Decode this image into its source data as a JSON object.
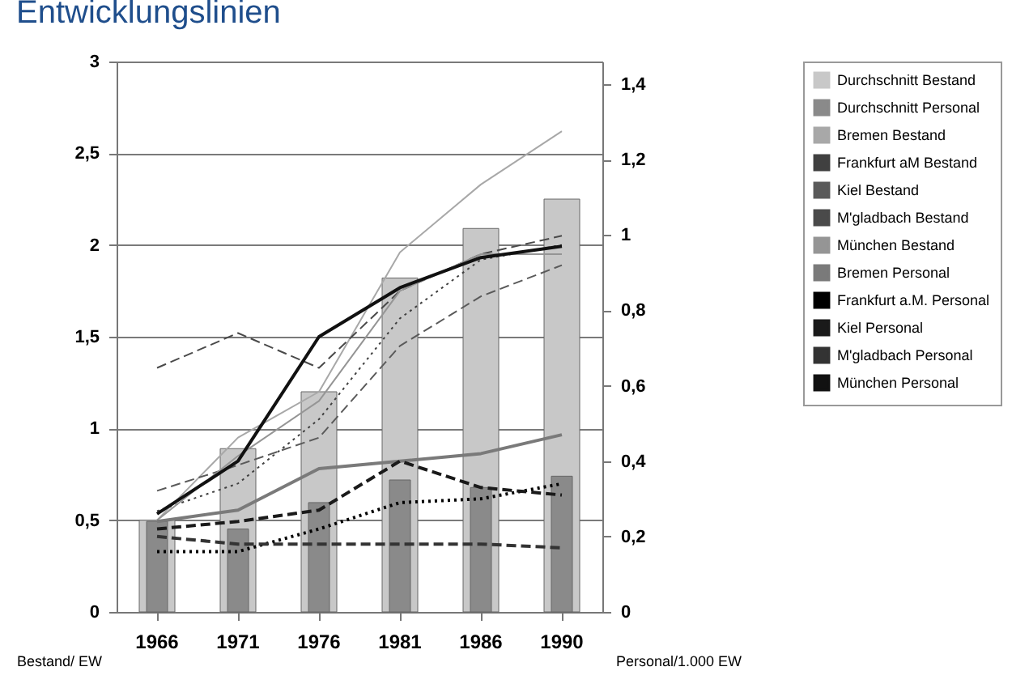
{
  "chart_data": {
    "type": "bar",
    "title": "Entwicklungslinien",
    "categories": [
      "1966",
      "1971",
      "1976",
      "1981",
      "1986",
      "1990"
    ],
    "ylabel": "Bestand/ EW",
    "y2label": "Personal/1.000 EW",
    "ylim": [
      0,
      3
    ],
    "yticks": [
      0,
      {
        "value": 0.5,
        "label": "0,5"
      },
      1,
      {
        "value": 1.5,
        "label": "1,5"
      },
      2,
      {
        "value": 2.5,
        "label": "2,5"
      },
      3
    ],
    "y2lim": [
      0,
      1.46
    ],
    "y2ticks": [
      0,
      {
        "value": 0.2,
        "label": "0,2"
      },
      {
        "value": 0.4,
        "label": "0,4"
      },
      {
        "value": 0.6,
        "label": "0,6"
      },
      {
        "value": 0.8,
        "label": "0,8"
      },
      1,
      {
        "value": 1.2,
        "label": "1,2"
      },
      {
        "value": 1.4,
        "label": "1,4"
      }
    ],
    "grid": "y",
    "legend": "right",
    "series": [
      {
        "name": "Durchschnitt Bestand",
        "color": "#c8c8c8",
        "values": [
          0.5,
          0.89,
          1.2,
          1.82,
          2.09,
          2.25
        ]
      },
      {
        "name": "Durchschnitt Personal",
        "axis": "y2",
        "color": "#8a8a8a",
        "values": [
          0.24,
          0.22,
          0.29,
          0.35,
          0.33,
          0.36
        ]
      },
      {
        "name": "Bremen Bestand",
        "type": "line",
        "line_style": "solid",
        "color": "#a8a8a8",
        "values": [
          0.5,
          0.95,
          1.2,
          1.96,
          2.33,
          2.62
        ]
      },
      {
        "name": "Frankfurt aM Bestand",
        "type": "line",
        "line_style": "dotted",
        "color": "#404040",
        "values": [
          0.55,
          0.7,
          1.05,
          1.6,
          1.92,
          2.0
        ]
      },
      {
        "name": "Kiel Bestand",
        "type": "line",
        "line_style": "dashed",
        "color": "#5a5a5a",
        "values": [
          0.66,
          0.8,
          0.95,
          1.45,
          1.72,
          1.89
        ]
      },
      {
        "name": "M'gladbach Bestand",
        "type": "line",
        "line_style": "dashed",
        "color": "#4a4a4a",
        "values": [
          1.33,
          1.52,
          1.33,
          1.75,
          1.95,
          2.05
        ]
      },
      {
        "name": "München Bestand",
        "type": "line",
        "line_style": "solid",
        "color": "#959595",
        "values": [
          0.5,
          0.85,
          1.15,
          1.75,
          1.95,
          1.95
        ]
      },
      {
        "name": "Bremen Personal",
        "type": "line",
        "axis": "y2",
        "line_style": "solid",
        "color": "#7a7a7a",
        "values": [
          0.24,
          0.27,
          0.38,
          0.4,
          0.42,
          0.47
        ]
      },
      {
        "name": "Frankfurt a.M. Personal",
        "type": "line",
        "axis": "y2",
        "line_style": "dotted",
        "color": "#000000",
        "values": [
          0.16,
          0.16,
          0.22,
          0.29,
          0.3,
          0.34
        ]
      },
      {
        "name": "Kiel Personal",
        "type": "line",
        "axis": "y2",
        "line_style": "dashed",
        "color": "#1a1a1a",
        "values": [
          0.22,
          0.24,
          0.27,
          0.4,
          0.33,
          0.31
        ]
      },
      {
        "name": "M'gladbach Personal",
        "type": "line",
        "axis": "y2",
        "line_style": "dashed",
        "color": "#333333",
        "values": [
          0.2,
          0.18,
          0.18,
          0.18,
          0.18,
          0.17
        ]
      },
      {
        "name": "München Personal",
        "type": "line",
        "axis": "y2",
        "line_style": "solid",
        "color": "#111111",
        "values": [
          0.26,
          0.4,
          0.73,
          0.86,
          0.94,
          0.97
        ]
      }
    ]
  }
}
